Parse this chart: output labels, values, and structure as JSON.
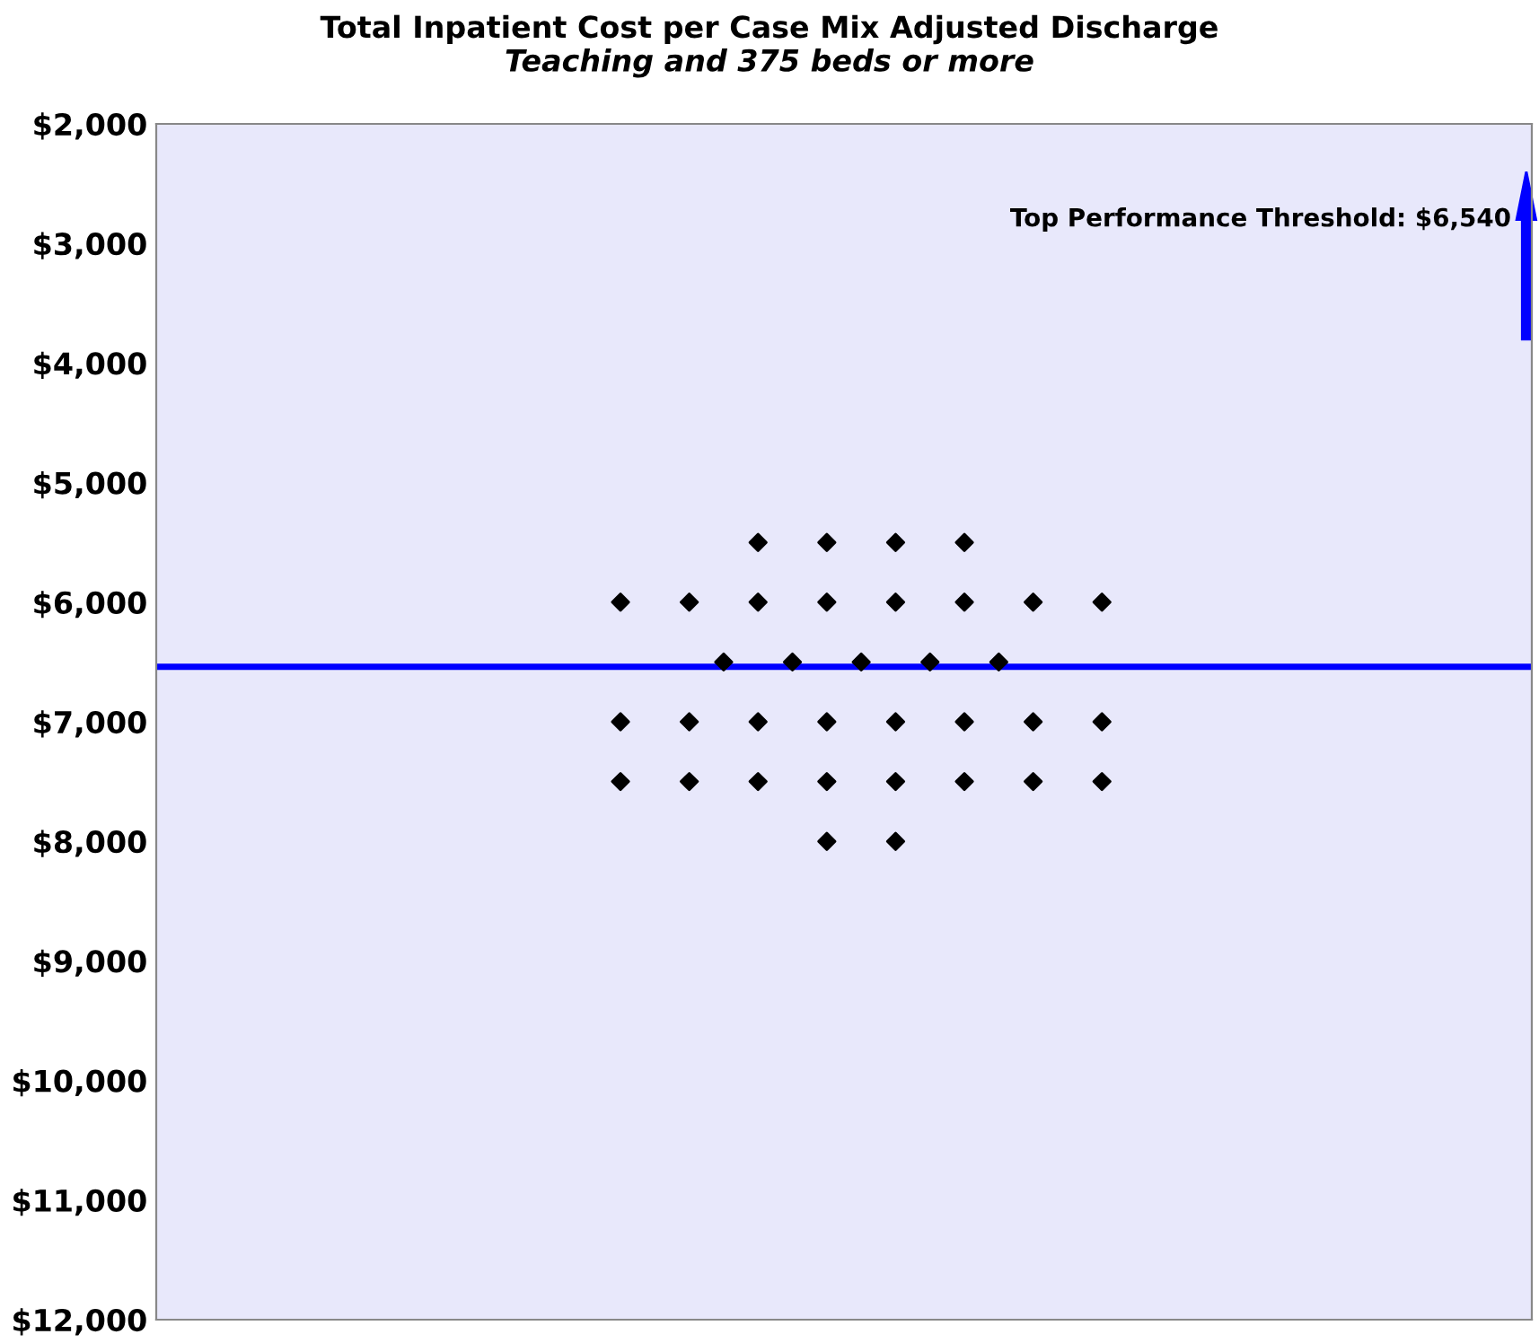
{
  "chart_data": {
    "type": "scatter",
    "title": "Total Inpatient Cost per Case Mix Adjusted Discharge",
    "subtitle": "Teaching and 375 beds or more",
    "annotations": [
      "Top Performance Threshold: $6,540"
    ],
    "categories": [
      null,
      null,
      null,
      null,
      null,
      null,
      null,
      null,
      null,
      null,
      null,
      null,
      null,
      null,
      null,
      null,
      null,
      null,
      null,
      null,
      null,
      null,
      null,
      null,
      null,
      null,
      null,
      null,
      null,
      null,
      null,
      null,
      null,
      null,
      null,
      null,
      null,
      null,
      null,
      null
    ],
    "series": [
      {
        "color": "#000000",
        "values": [
          null,
          null,
          null,
          null,
          null,
          null,
          null,
          null,
          null,
          null,
          null,
          null,
          null,
          null,
          null,
          null,
          null,
          5500,
          null,
          5500,
          null,
          5500,
          null,
          5500,
          null,
          null,
          null,
          null,
          null,
          null,
          null,
          null,
          null,
          null,
          null,
          null,
          null,
          null,
          null,
          null
        ]
      },
      {
        "color": "#000000",
        "values": [
          null,
          null,
          null,
          null,
          null,
          null,
          null,
          null,
          null,
          null,
          null,
          null,
          null,
          6000,
          null,
          6000,
          null,
          6000,
          null,
          6000,
          null,
          6000,
          null,
          6000,
          null,
          6000,
          null,
          6000,
          null,
          null,
          null,
          null,
          null,
          null,
          null,
          null,
          null,
          null,
          null,
          null
        ]
      },
      {
        "color": "#000000",
        "values": [
          null,
          null,
          null,
          null,
          null,
          null,
          null,
          null,
          null,
          null,
          null,
          null,
          null,
          null,
          null,
          null,
          6500,
          null,
          6500,
          null,
          6500,
          null,
          6500,
          null,
          6500,
          null,
          null,
          null,
          null,
          null,
          null,
          null,
          null,
          null,
          null,
          null,
          null,
          null,
          null,
          null
        ]
      },
      {
        "color": "#000000",
        "values": [
          null,
          null,
          null,
          null,
          null,
          null,
          null,
          null,
          null,
          null,
          null,
          null,
          null,
          7000,
          null,
          7000,
          null,
          7000,
          null,
          7000,
          null,
          7000,
          null,
          7000,
          null,
          7000,
          null,
          7000,
          null,
          null,
          null,
          null,
          null,
          null,
          null,
          null,
          null,
          null,
          null,
          null
        ]
      },
      {
        "color": "#000000",
        "values": [
          null,
          null,
          null,
          null,
          null,
          null,
          null,
          null,
          null,
          null,
          null,
          null,
          null,
          7500,
          null,
          7500,
          null,
          7500,
          null,
          7500,
          null,
          7500,
          null,
          7500,
          null,
          7500,
          null,
          7500,
          null,
          null,
          null,
          null,
          null,
          null,
          null,
          null,
          null,
          null,
          null,
          null
        ]
      },
      {
        "color": "#000000",
        "values": [
          null,
          null,
          null,
          null,
          null,
          null,
          null,
          null,
          null,
          null,
          null,
          null,
          null,
          null,
          null,
          null,
          null,
          null,
          null,
          8000,
          null,
          8000,
          null,
          null,
          null,
          null,
          null,
          null,
          null,
          null,
          null,
          null,
          null,
          null,
          null,
          null,
          null,
          null,
          null,
          null
        ]
      }
    ],
    "marker": "diamond",
    "ylim": [
      12000,
      2000
    ],
    "yticks": [
      {
        "value": 2000,
        "label": "$2,000"
      },
      {
        "value": 3000,
        "label": "$3,000"
      },
      {
        "value": 4000,
        "label": "$4,000"
      },
      {
        "value": 5000,
        "label": "$5,000"
      },
      {
        "value": 6000,
        "label": "$6,000"
      },
      {
        "value": 7000,
        "label": "$7,000"
      },
      {
        "value": 8000,
        "label": "$8,000"
      },
      {
        "value": 9000,
        "label": "$9,000"
      },
      {
        "value": 10000,
        "label": "$10,000"
      },
      {
        "value": 11000,
        "label": "$11,000"
      },
      {
        "value": 12000,
        "label": "$12,000"
      }
    ],
    "tick_labels": "y",
    "grid": false,
    "ref_lines": [
      {
        "axis": "y",
        "value": 6540,
        "color": "#0000ff",
        "line_style": "solid"
      }
    ]
  }
}
